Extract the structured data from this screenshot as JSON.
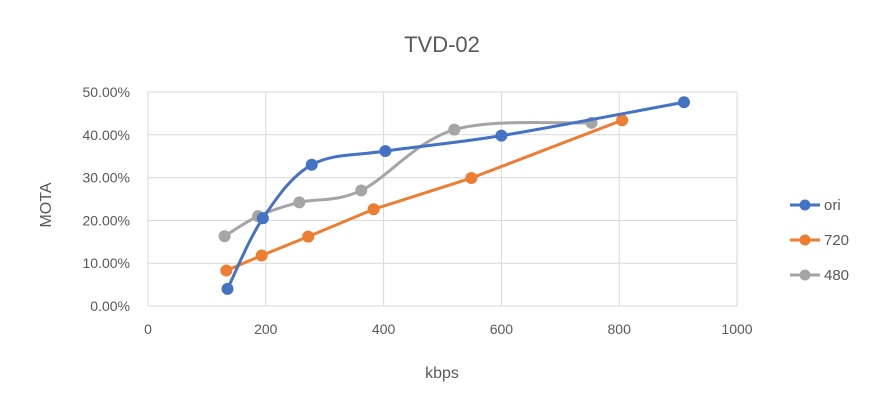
{
  "chart_data": {
    "type": "line",
    "title": "TVD-02",
    "xlabel": "kbps",
    "ylabel": "MOTA",
    "xlim": [
      0,
      1000
    ],
    "ylim": [
      0,
      0.5
    ],
    "x_ticks": [
      "0",
      "200",
      "400",
      "600",
      "800",
      "1000"
    ],
    "y_ticks": [
      "0.00%",
      "10.00%",
      "20.00%",
      "30.00%",
      "40.00%",
      "50.00%"
    ],
    "grid": true,
    "legend_position": "right",
    "series": [
      {
        "name": "ori",
        "color": "#4472C4",
        "smooth": true,
        "points": [
          [
            135,
            0.04
          ],
          [
            195,
            0.205
          ],
          [
            278,
            0.33
          ],
          [
            403,
            0.362
          ],
          [
            600,
            0.398
          ],
          [
            910,
            0.476
          ]
        ]
      },
      {
        "name": "720",
        "color": "#ED7D31",
        "smooth": false,
        "points": [
          [
            133,
            0.083
          ],
          [
            193,
            0.118
          ],
          [
            272,
            0.162
          ],
          [
            383,
            0.226
          ],
          [
            549,
            0.299
          ],
          [
            805,
            0.434
          ]
        ]
      },
      {
        "name": "480",
        "color": "#A5A5A5",
        "smooth": true,
        "points": [
          [
            130,
            0.163
          ],
          [
            187,
            0.21
          ],
          [
            257,
            0.242
          ],
          [
            362,
            0.27
          ],
          [
            520,
            0.412
          ],
          [
            753,
            0.428
          ]
        ]
      }
    ]
  }
}
